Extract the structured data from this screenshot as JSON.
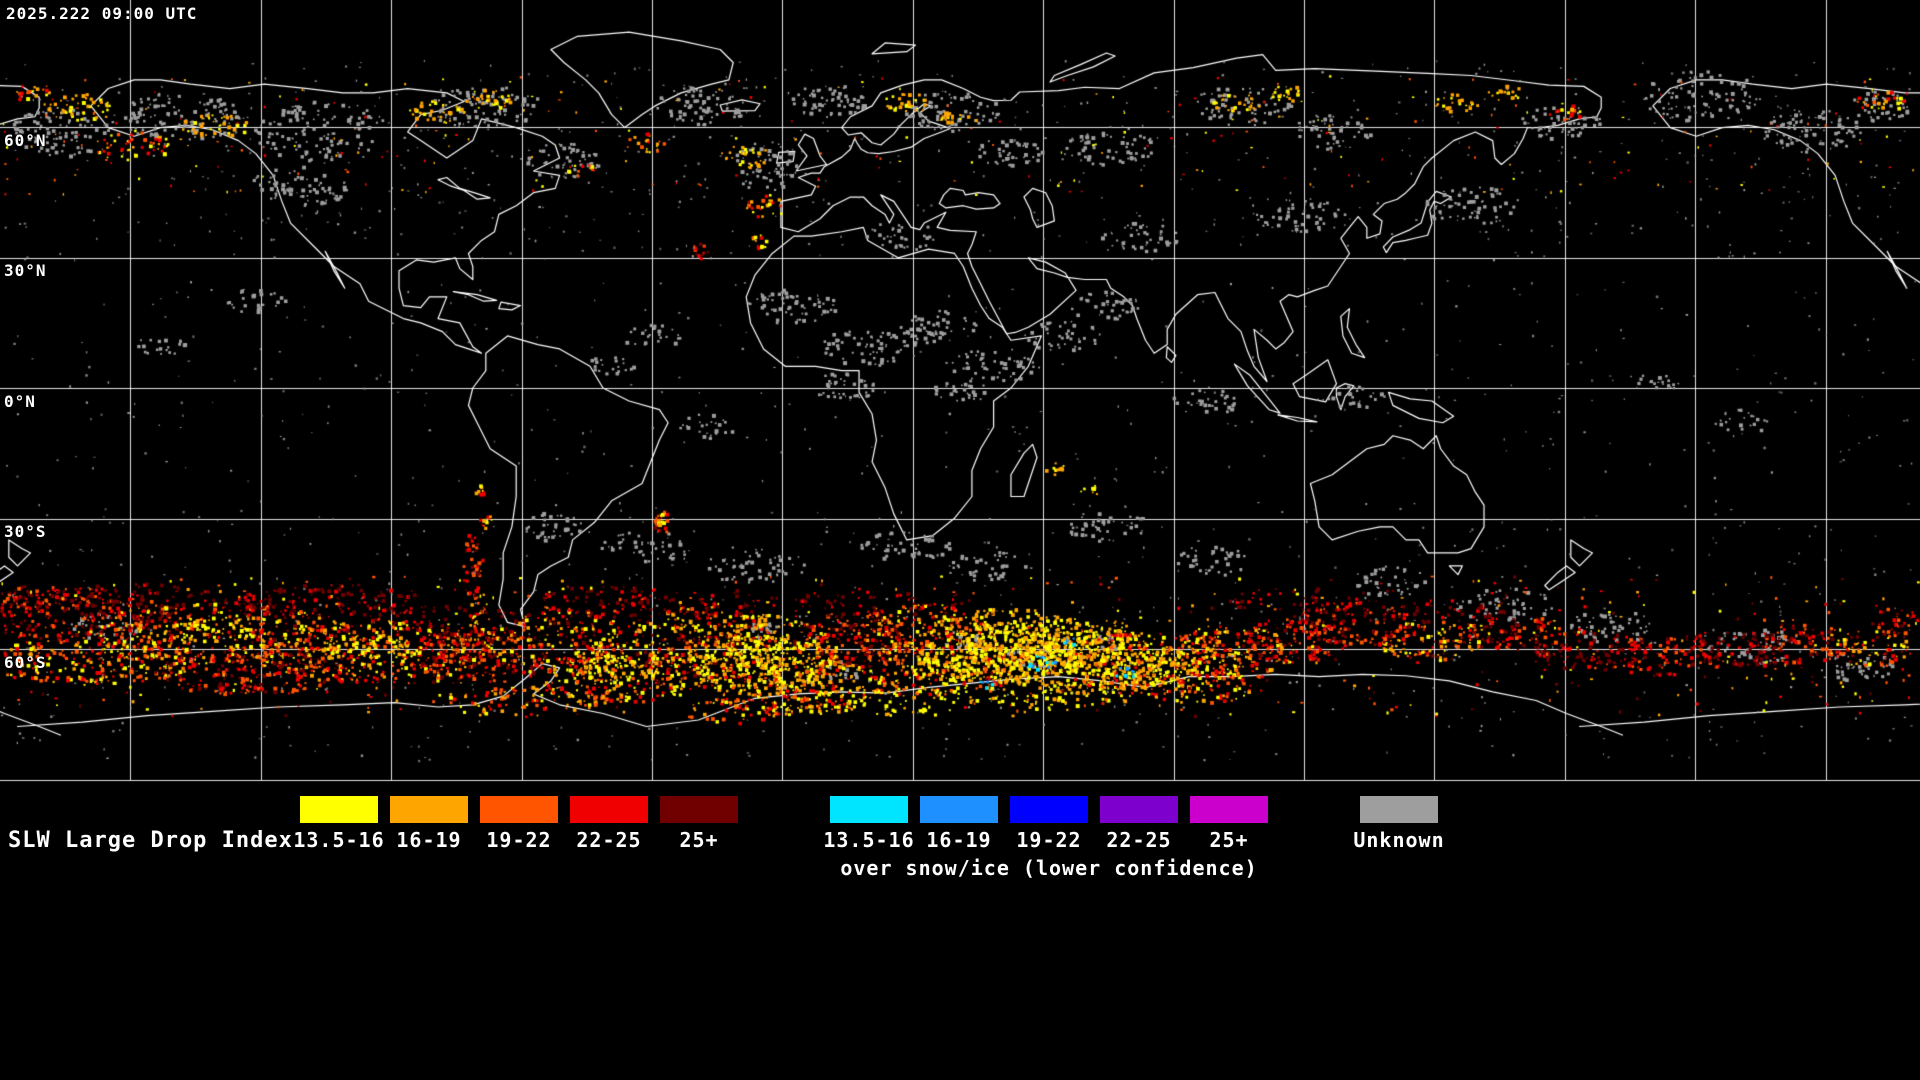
{
  "map": {
    "timestamp": "2025.222 09:00 UTC",
    "lat_labels": [
      "60°N",
      "30°N",
      "0°N",
      "30°S",
      "60°S"
    ],
    "background_color": "#000000",
    "grid_color": "#ffffff",
    "coastline_color": "#ffffff"
  },
  "legend": {
    "title": "SLW Large Drop Index",
    "warm": [
      {
        "range": "13.5-16",
        "color": "#ffff00"
      },
      {
        "range": "16-19",
        "color": "#ffa500"
      },
      {
        "range": "19-22",
        "color": "#ff5500"
      },
      {
        "range": "22-25",
        "color": "#f00000"
      },
      {
        "range": "25+",
        "color": "#700000"
      }
    ],
    "snow_ice": [
      {
        "range": "13.5-16",
        "color": "#00e5ff"
      },
      {
        "range": "16-19",
        "color": "#1e90ff"
      },
      {
        "range": "19-22",
        "color": "#0000ff"
      },
      {
        "range": "22-25",
        "color": "#7d00cc"
      },
      {
        "range": "25+",
        "color": "#cc00cc"
      }
    ],
    "snow_ice_note": "over snow/ice (lower confidence)",
    "unknown": {
      "label": "Unknown",
      "color": "#9e9e9e"
    }
  }
}
